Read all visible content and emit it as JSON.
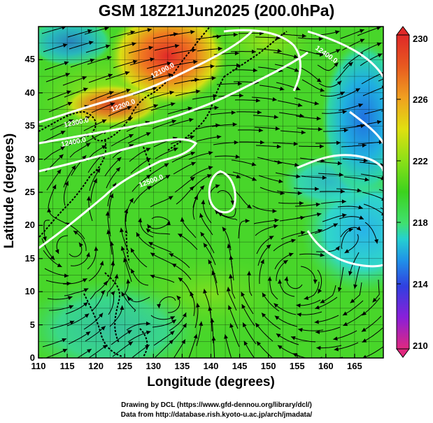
{
  "title": "GSM 18Z21Jun2025 (200.0hPa)",
  "x_axis": {
    "label": "Longitude (degrees)",
    "ticks": [
      "110",
      "115",
      "120",
      "125",
      "130",
      "135",
      "140",
      "145",
      "150",
      "155",
      "160",
      "165"
    ]
  },
  "y_axis": {
    "label": "Latitude  (degrees)",
    "ticks": [
      "0",
      "5",
      "10",
      "15",
      "20",
      "25",
      "30",
      "35",
      "40",
      "45"
    ]
  },
  "colorbar": {
    "ticks": [
      "230",
      "226",
      "222",
      "218",
      "214",
      "210"
    ],
    "colors": [
      "#e0287f",
      "#8a1fd9",
      "#3040e0",
      "#2090e8",
      "#25d0d0",
      "#40e070",
      "#3cd21e",
      "#8ce018",
      "#e0e010",
      "#f0a020",
      "#e85a20",
      "#e02828"
    ]
  },
  "contour_labels": [
    "12400.0",
    "12200.0",
    "12100.0",
    "12300.0",
    "12500.0"
  ],
  "credits": {
    "line1": "Drawing by DCL (https://www.gfd-dennou.org/library/dcl/)",
    "line2": "Data from http://database.rish.kyoto-u.ac.jp/arch/jmadata/"
  },
  "chart_data": {
    "type": "heatmap",
    "title": "GSM 18Z21Jun2025 (200.0hPa)",
    "xlabel": "Longitude (degrees)",
    "ylabel": "Latitude  (degrees)",
    "xlim": [
      110,
      170
    ],
    "ylim": [
      0,
      50
    ],
    "colorbar_range": [
      210,
      230
    ],
    "grid": true,
    "fields": [
      "shading (colorbar 210-230)",
      "streamlines",
      "height contours"
    ],
    "contours": [
      {
        "label": "12100.0",
        "lon": 133,
        "lat": 43
      },
      {
        "label": "12200.0",
        "lon": 124,
        "lat": 40
      },
      {
        "label": "12300.0",
        "lon": 115,
        "lat": 37
      },
      {
        "label": "12400.0",
        "lon": 118,
        "lat": 35
      },
      {
        "label": "12500.0",
        "lon": 128,
        "lat": 29
      },
      {
        "label": "12400.0",
        "lon": 156,
        "lat": 45
      }
    ]
  }
}
